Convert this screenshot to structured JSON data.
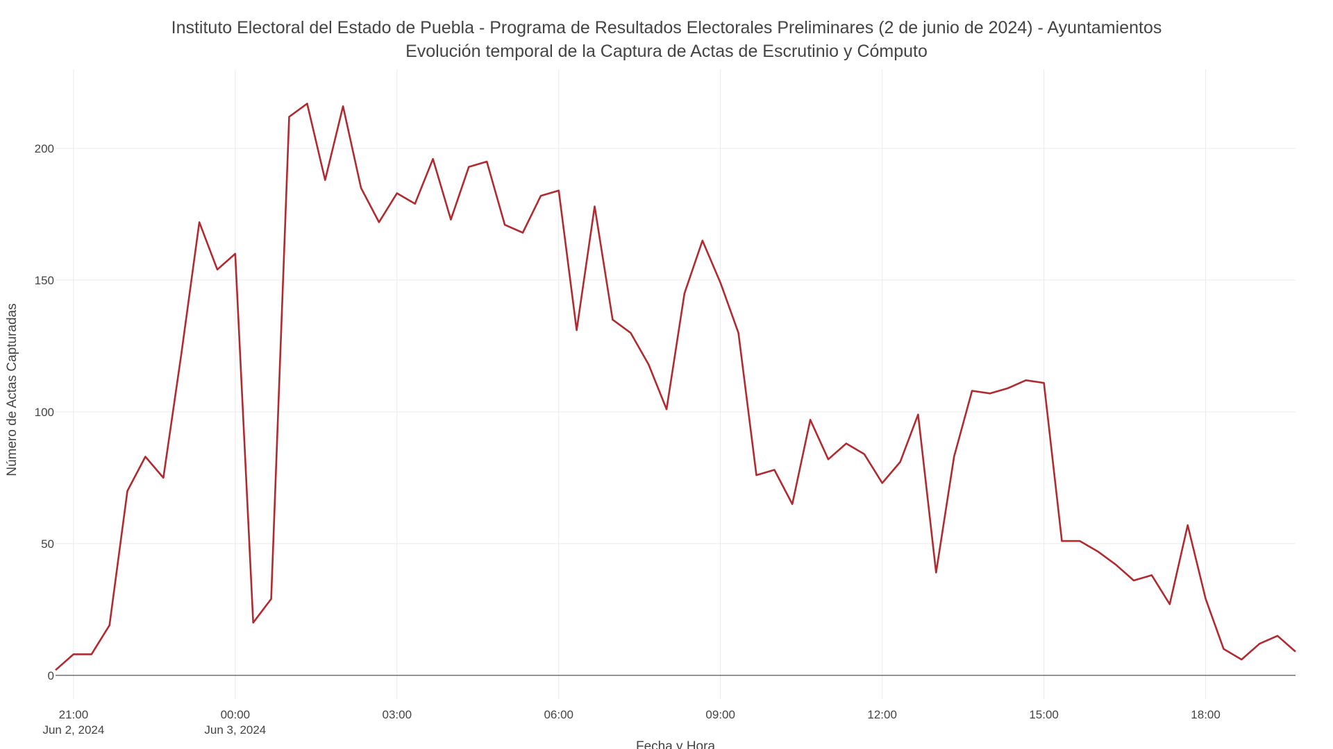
{
  "chart_data": {
    "type": "line",
    "title": "Instituto Electoral del Estado de Puebla - Programa de Resultados Electorales Preliminares (2 de junio de 2024) - Ayuntamientos",
    "subtitle": "Evolución temporal de la Captura de Actas de Escrutinio y Cómputo",
    "xlabel": "Fecha y Hora",
    "ylabel": "Número de Actas Capturadas",
    "x_type": "date",
    "xlim": [
      "2024-06-02 20:40",
      "2024-06-03 19:40"
    ],
    "ylim": [
      -9,
      230
    ],
    "grid": true,
    "legend": "none",
    "color": "#b22a2f",
    "x_ticks": [
      {
        "t": "2024-06-02 21:00",
        "label": "21:00",
        "sublabel": "Jun 2, 2024"
      },
      {
        "t": "2024-06-03 00:00",
        "label": "00:00",
        "sublabel": "Jun 3, 2024"
      },
      {
        "t": "2024-06-03 03:00",
        "label": "03:00",
        "sublabel": ""
      },
      {
        "t": "2024-06-03 06:00",
        "label": "06:00",
        "sublabel": ""
      },
      {
        "t": "2024-06-03 09:00",
        "label": "09:00",
        "sublabel": ""
      },
      {
        "t": "2024-06-03 12:00",
        "label": "12:00",
        "sublabel": ""
      },
      {
        "t": "2024-06-03 15:00",
        "label": "15:00",
        "sublabel": ""
      },
      {
        "t": "2024-06-03 18:00",
        "label": "18:00",
        "sublabel": ""
      }
    ],
    "y_ticks": [
      0,
      50,
      100,
      150,
      200
    ],
    "x": [
      "2024-06-02 20:40",
      "2024-06-02 21:00",
      "2024-06-02 21:20",
      "2024-06-02 21:40",
      "2024-06-02 22:00",
      "2024-06-02 22:20",
      "2024-06-02 22:40",
      "2024-06-02 23:00",
      "2024-06-02 23:20",
      "2024-06-02 23:40",
      "2024-06-03 00:00",
      "2024-06-03 00:20",
      "2024-06-03 00:40",
      "2024-06-03 01:00",
      "2024-06-03 01:20",
      "2024-06-03 01:40",
      "2024-06-03 02:00",
      "2024-06-03 02:20",
      "2024-06-03 02:40",
      "2024-06-03 03:00",
      "2024-06-03 03:20",
      "2024-06-03 03:40",
      "2024-06-03 04:00",
      "2024-06-03 04:20",
      "2024-06-03 04:40",
      "2024-06-03 05:00",
      "2024-06-03 05:20",
      "2024-06-03 05:40",
      "2024-06-03 06:00",
      "2024-06-03 06:20",
      "2024-06-03 06:40",
      "2024-06-03 07:00",
      "2024-06-03 07:20",
      "2024-06-03 07:40",
      "2024-06-03 08:00",
      "2024-06-03 08:20",
      "2024-06-03 08:40",
      "2024-06-03 09:00",
      "2024-06-03 09:20",
      "2024-06-03 09:40",
      "2024-06-03 10:00",
      "2024-06-03 10:20",
      "2024-06-03 10:40",
      "2024-06-03 11:00",
      "2024-06-03 11:20",
      "2024-06-03 11:40",
      "2024-06-03 12:00",
      "2024-06-03 12:20",
      "2024-06-03 12:40",
      "2024-06-03 13:00",
      "2024-06-03 13:20",
      "2024-06-03 13:40",
      "2024-06-03 14:00",
      "2024-06-03 14:20",
      "2024-06-03 14:40",
      "2024-06-03 15:00",
      "2024-06-03 15:20",
      "2024-06-03 15:40",
      "2024-06-03 16:00",
      "2024-06-03 16:20",
      "2024-06-03 16:40",
      "2024-06-03 17:00",
      "2024-06-03 17:20",
      "2024-06-03 17:40",
      "2024-06-03 18:00",
      "2024-06-03 18:20",
      "2024-06-03 18:40",
      "2024-06-03 19:00",
      "2024-06-03 19:20",
      "2024-06-03 19:40"
    ],
    "values": [
      2,
      8,
      8,
      19,
      70,
      83,
      75,
      122,
      172,
      154,
      160,
      20,
      29,
      212,
      217,
      188,
      216,
      185,
      172,
      183,
      179,
      196,
      173,
      193,
      195,
      171,
      168,
      182,
      184,
      131,
      178,
      135,
      130,
      118,
      101,
      145,
      165,
      149,
      130,
      76,
      78,
      65,
      97,
      82,
      88,
      84,
      73,
      81,
      99,
      39,
      83,
      108,
      107,
      109,
      112,
      111,
      51,
      51,
      47,
      42,
      36,
      38,
      27,
      57,
      29,
      10,
      6,
      12,
      15,
      9
    ]
  }
}
